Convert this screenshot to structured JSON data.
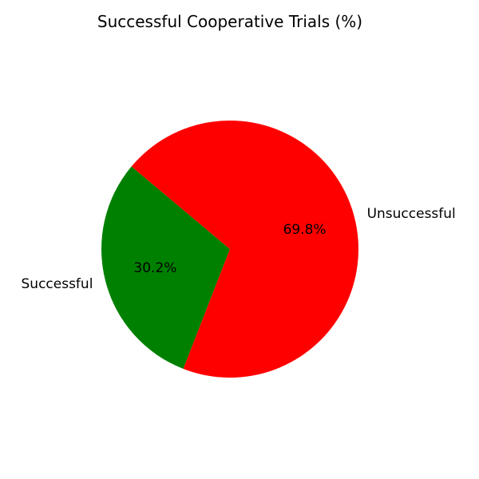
{
  "chart_data": {
    "type": "pie",
    "title": "Successful Cooperative Trials (%)",
    "slices": [
      {
        "label": "Successful",
        "value": 30.2,
        "pct_label": "30.2%",
        "color": "#008000"
      },
      {
        "label": "Unsuccessful",
        "value": 69.8,
        "pct_label": "69.8%",
        "color": "#ff0000"
      }
    ],
    "start_angle_deg": 140,
    "direction": "counterclockwise",
    "legend": "none"
  }
}
